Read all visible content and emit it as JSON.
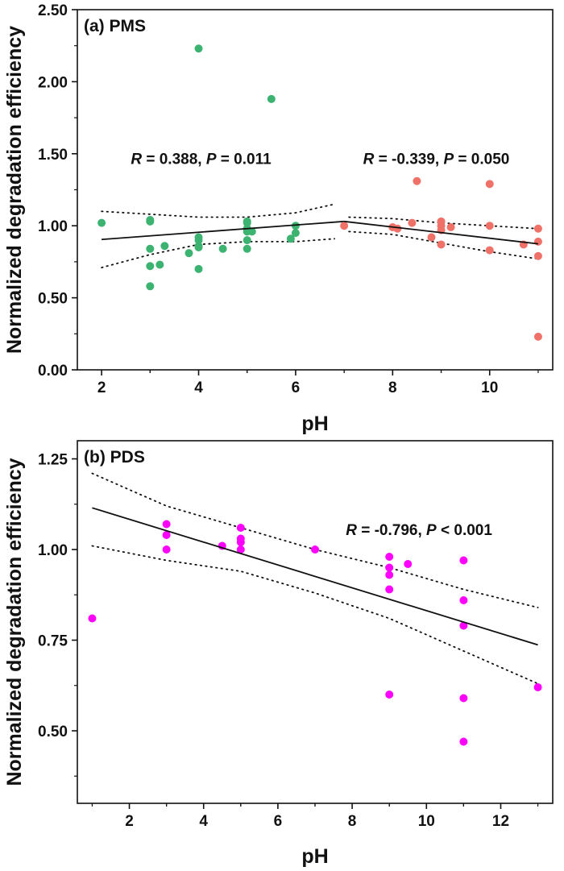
{
  "chart_data": [
    {
      "type": "scatter",
      "panel_label": "(a) PMS",
      "xlabel": "pH",
      "ylabel": "Normalized degradation efficiency",
      "xlim": [
        1.5,
        11.3
      ],
      "ylim": [
        0,
        2.5
      ],
      "xticks": [
        "2",
        "4",
        "6",
        "8",
        "10"
      ],
      "yticks": [
        "0.00",
        "0.50",
        "1.00",
        "1.50",
        "2.00",
        "2.50"
      ],
      "grid": false,
      "series": [
        {
          "color": "#3cb371",
          "points": [
            [
              2,
              1.02
            ],
            [
              3,
              1.04
            ],
            [
              3,
              1.03
            ],
            [
              3,
              0.84
            ],
            [
              3,
              0.72
            ],
            [
              3,
              0.58
            ],
            [
              3.2,
              0.73
            ],
            [
              3.3,
              0.86
            ],
            [
              3.8,
              0.81
            ],
            [
              4,
              0.92
            ],
            [
              4,
              0.9
            ],
            [
              4,
              0.86
            ],
            [
              4,
              0.85
            ],
            [
              4,
              0.7
            ],
            [
              4,
              2.23
            ],
            [
              4.5,
              0.84
            ],
            [
              5,
              1.03
            ],
            [
              5,
              1.02
            ],
            [
              5,
              0.98
            ],
            [
              5,
              0.96
            ],
            [
              5,
              0.9
            ],
            [
              5,
              0.84
            ],
            [
              5.1,
              0.96
            ],
            [
              5.5,
              1.88
            ],
            [
              5.9,
              0.91
            ],
            [
              6,
              1.0
            ],
            [
              6,
              0.95
            ]
          ],
          "fit": [
            [
              2,
              0.905
            ],
            [
              7,
              1.03
            ]
          ],
          "ci_upper": [
            [
              2,
              1.1
            ],
            [
              3,
              1.08
            ],
            [
              4,
              1.06
            ],
            [
              5,
              1.06
            ],
            [
              6,
              1.09
            ],
            [
              6.8,
              1.15
            ]
          ],
          "ci_lower": [
            [
              2,
              0.71
            ],
            [
              3,
              0.8
            ],
            [
              4,
              0.87
            ],
            [
              5,
              0.89
            ],
            [
              6,
              0.89
            ],
            [
              6.8,
              0.91
            ]
          ]
        },
        {
          "color": "#f07167",
          "points": [
            [
              7,
              1.0
            ],
            [
              8,
              0.99
            ],
            [
              8.1,
              0.98
            ],
            [
              8.4,
              1.02
            ],
            [
              8.5,
              1.31
            ],
            [
              8.8,
              0.92
            ],
            [
              9,
              1.03
            ],
            [
              9,
              1.0
            ],
            [
              9,
              0.97
            ],
            [
              9,
              0.87
            ],
            [
              9.2,
              0.99
            ],
            [
              10,
              1.29
            ],
            [
              10,
              1.0
            ],
            [
              10,
              0.83
            ],
            [
              10.7,
              0.87
            ],
            [
              11,
              0.98
            ],
            [
              11,
              0.89
            ],
            [
              11,
              0.79
            ],
            [
              11,
              0.23
            ]
          ],
          "fit": [
            [
              7,
              1.03
            ],
            [
              11,
              0.875
            ]
          ],
          "ci_upper": [
            [
              7.1,
              1.06
            ],
            [
              8,
              1.05
            ],
            [
              9,
              1.02
            ],
            [
              10,
              1.0
            ],
            [
              11,
              0.98
            ]
          ],
          "ci_lower": [
            [
              7.1,
              0.96
            ],
            [
              8,
              0.94
            ],
            [
              9,
              0.88
            ],
            [
              10,
              0.82
            ],
            [
              11,
              0.77
            ]
          ]
        }
      ],
      "annotations": [
        {
          "parts": [
            {
              "t": "R",
              "italic": true
            },
            {
              "t": " = 0.388, "
            },
            {
              "t": "P",
              "italic": true
            },
            {
              "t": " = 0.011"
            }
          ],
          "x": 4.05,
          "y": 1.43
        },
        {
          "parts": [
            {
              "t": "R",
              "italic": true
            },
            {
              "t": " = -0.339, "
            },
            {
              "t": "P",
              "italic": true
            },
            {
              "t": " = 0.050"
            }
          ],
          "x": 8.9,
          "y": 1.43
        }
      ]
    },
    {
      "type": "scatter",
      "panel_label": "(b) PDS",
      "xlabel": "pH",
      "ylabel": "Normalized degradation efficiency",
      "xlim": [
        0.6,
        13.4
      ],
      "ylim": [
        0.3,
        1.3
      ],
      "xticks": [
        "2",
        "4",
        "6",
        "8",
        "10",
        "12"
      ],
      "yticks": [
        "0.50",
        "0.75",
        "1.00",
        "1.25"
      ],
      "grid": false,
      "series": [
        {
          "color": "#ff00ff",
          "points": [
            [
              1,
              0.81
            ],
            [
              3,
              1.07
            ],
            [
              3,
              1.04
            ],
            [
              3,
              1.0
            ],
            [
              4.5,
              1.01
            ],
            [
              5,
              1.06
            ],
            [
              5,
              1.03
            ],
            [
              5,
              1.02
            ],
            [
              5,
              1.0
            ],
            [
              7,
              1.0
            ],
            [
              9,
              0.98
            ],
            [
              9,
              0.95
            ],
            [
              9,
              0.93
            ],
            [
              9,
              0.89
            ],
            [
              9,
              0.6
            ],
            [
              9.5,
              0.96
            ],
            [
              11,
              0.97
            ],
            [
              11,
              0.86
            ],
            [
              11,
              0.79
            ],
            [
              11,
              0.59
            ],
            [
              11,
              0.47
            ],
            [
              13,
              0.62
            ]
          ],
          "fit": [
            [
              1,
              1.115
            ],
            [
              13,
              0.737
            ]
          ],
          "ci_upper": [
            [
              1,
              1.21
            ],
            [
              3,
              1.12
            ],
            [
              5,
              1.06
            ],
            [
              7,
              1.0
            ],
            [
              9,
              0.95
            ],
            [
              11,
              0.89
            ],
            [
              13,
              0.84
            ]
          ],
          "ci_lower": [
            [
              1,
              1.01
            ],
            [
              3,
              0.97
            ],
            [
              5,
              0.94
            ],
            [
              7,
              0.88
            ],
            [
              9,
              0.81
            ],
            [
              11,
              0.72
            ],
            [
              13,
              0.63
            ]
          ]
        }
      ],
      "annotations": [
        {
          "parts": [
            {
              "t": "R",
              "italic": true
            },
            {
              "t": " = -0.796, "
            },
            {
              "t": "P",
              "italic": true
            },
            {
              "t": " < 0.001"
            }
          ],
          "x": 9.8,
          "y": 1.04
        }
      ]
    }
  ]
}
